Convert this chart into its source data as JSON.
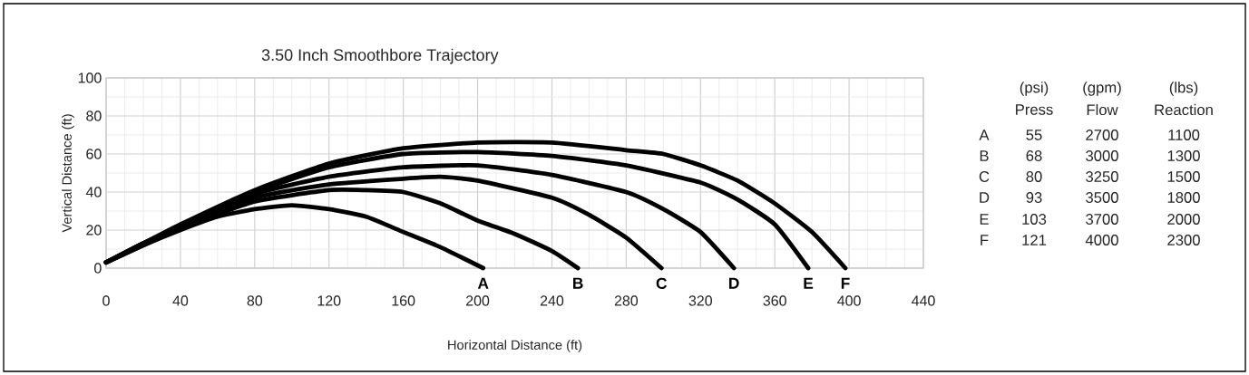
{
  "chart_data": {
    "type": "line",
    "title": "3.50 Inch Smoothbore Trajectory",
    "xlabel": "Horizontal Distance (ft)",
    "ylabel": "Vertical Distance (ft)",
    "xlim": [
      0,
      440
    ],
    "xticks": [
      0,
      40,
      80,
      120,
      160,
      200,
      240,
      280,
      320,
      360,
      400,
      440
    ],
    "ylim": [
      0,
      100
    ],
    "yticks": [
      0,
      20,
      40,
      60,
      80,
      100
    ],
    "grid": true,
    "marker": "none",
    "line_style": "solid",
    "series": [
      {
        "name": "A",
        "color": "#000000",
        "x": [
          0,
          20,
          40,
          60,
          80,
          100,
          120,
          140,
          160,
          180,
          203
        ],
        "values": [
          3,
          12,
          20,
          27,
          31,
          33,
          31,
          27,
          19,
          11,
          0
        ]
      },
      {
        "name": "B",
        "color": "#000000",
        "x": [
          0,
          20,
          40,
          80,
          120,
          140,
          160,
          180,
          200,
          220,
          240,
          254
        ],
        "values": [
          3,
          12,
          21,
          35,
          41,
          41,
          40,
          34,
          25,
          18,
          9,
          0
        ]
      },
      {
        "name": "C",
        "color": "#000000",
        "x": [
          0,
          20,
          40,
          80,
          120,
          160,
          180,
          200,
          240,
          260,
          280,
          299
        ],
        "values": [
          3,
          13,
          21,
          37,
          44,
          47,
          48,
          46,
          37,
          28,
          16,
          0
        ]
      },
      {
        "name": "D",
        "color": "#000000",
        "x": [
          0,
          20,
          40,
          80,
          120,
          160,
          200,
          240,
          280,
          300,
          320,
          338
        ],
        "values": [
          3,
          13,
          22,
          39,
          48,
          53,
          54,
          49,
          40,
          31,
          19,
          0
        ]
      },
      {
        "name": "E",
        "color": "#000000",
        "x": [
          0,
          20,
          40,
          80,
          120,
          160,
          200,
          240,
          280,
          320,
          340,
          360,
          378
        ],
        "values": [
          3,
          13,
          22,
          40,
          53,
          60,
          61,
          59,
          54,
          45,
          36,
          23,
          0
        ]
      },
      {
        "name": "F",
        "color": "#000000",
        "x": [
          0,
          20,
          40,
          80,
          120,
          160,
          200,
          240,
          280,
          300,
          320,
          340,
          360,
          380,
          398
        ],
        "values": [
          3,
          13,
          23,
          41,
          55,
          63,
          66,
          66,
          62,
          60,
          54,
          46,
          34,
          19,
          0
        ]
      }
    ],
    "annotations": [
      "(psi)",
      "(gpm)",
      "(lbs)",
      "Press",
      "Flow",
      "Reaction",
      "A",
      "55",
      "2700",
      "1100",
      "B",
      "68",
      "3000",
      "1300",
      "C",
      "80",
      "3250",
      "1500",
      "D",
      "93",
      "3500",
      "1800",
      "E",
      "103",
      "3700",
      "2000",
      "F",
      "121",
      "4000",
      "2300"
    ]
  }
}
